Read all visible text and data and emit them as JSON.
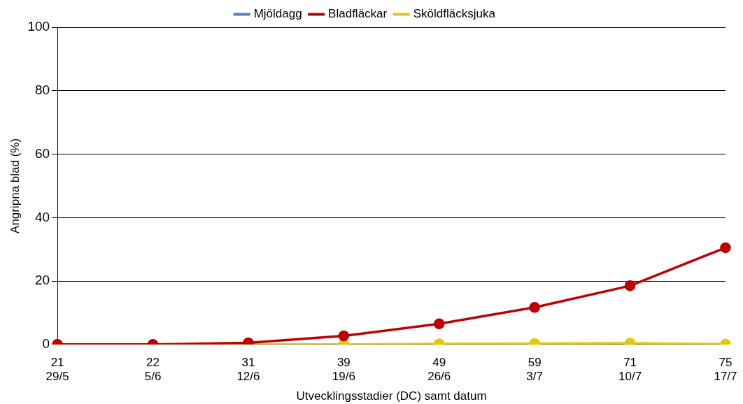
{
  "chart_data": {
    "type": "line",
    "xlabel": "Utvecklingsstadier (DC) samt datum",
    "ylabel": "Angripna blad (%)",
    "categories": [
      "21\n29/5",
      "22\n5/6",
      "31\n12/6",
      "39\n19/6",
      "49\n26/6",
      "59\n3/7",
      "71\n10/7",
      "75\n17/7"
    ],
    "series": [
      {
        "name": "Mjöldagg",
        "color": "#4f81bd",
        "values": [
          null,
          null,
          null,
          null,
          null,
          null,
          null,
          null
        ]
      },
      {
        "name": "Bladfläckar",
        "color": "#c00000",
        "values": [
          0,
          0,
          0.5,
          2.7,
          6.5,
          11.7,
          18.5,
          30.5
        ]
      },
      {
        "name": "Sköldfläcksjuka",
        "color": "#e6c800",
        "values": [
          0,
          0,
          0,
          0,
          0.2,
          0.3,
          0.4,
          0.1
        ]
      }
    ],
    "ylim": [
      0,
      100
    ],
    "yticks": [
      0,
      20,
      40,
      60,
      80,
      100
    ],
    "grid": "y",
    "legend": "top",
    "marker": "circle",
    "line_style": "solid"
  }
}
